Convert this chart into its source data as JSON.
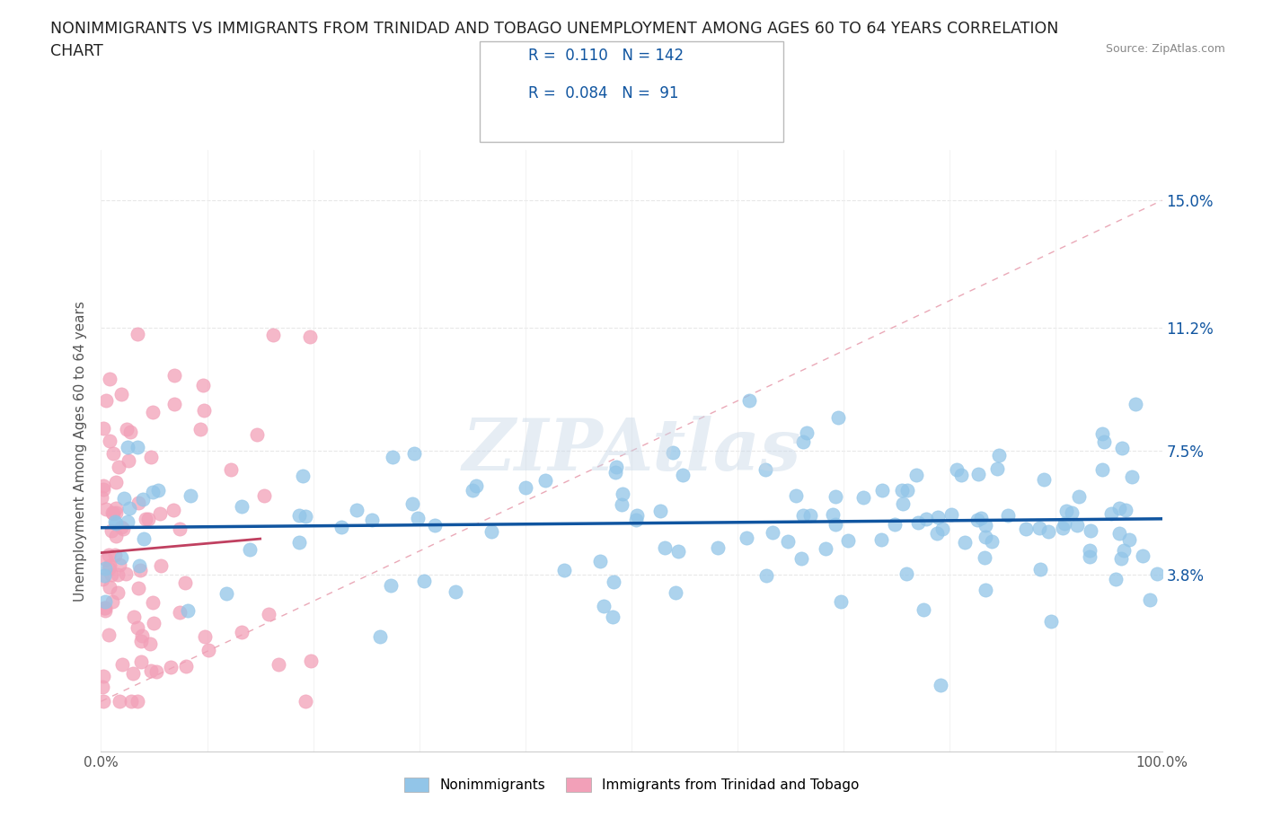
{
  "title_line1": "NONIMMIGRANTS VS IMMIGRANTS FROM TRINIDAD AND TOBAGO UNEMPLOYMENT AMONG AGES 60 TO 64 YEARS CORRELATION",
  "title_line2": "CHART",
  "source": "Source: ZipAtlas.com",
  "ylabel": "Unemployment Among Ages 60 to 64 years",
  "xlim": [
    0,
    100
  ],
  "ylim": [
    -1.5,
    16.5
  ],
  "xticks": [
    0,
    10,
    20,
    30,
    40,
    50,
    60,
    70,
    80,
    90,
    100
  ],
  "xticklabels": [
    "0.0%",
    "",
    "",
    "",
    "",
    "",
    "",
    "",
    "",
    "",
    "100.0%"
  ],
  "ytick_positions": [
    3.8,
    7.5,
    11.2,
    15.0
  ],
  "ytick_labels": [
    "3.8%",
    "7.5%",
    "11.2%",
    "15.0%"
  ],
  "nonimmigrant_color": "#92c5e8",
  "immigrant_color": "#f2a0b8",
  "trend_line_color": "#1055a0",
  "immigrant_trend_color": "#c04060",
  "diagonal_line_color": "#e8a0b0",
  "R_nonimmigrant": 0.11,
  "N_nonimmigrant": 142,
  "R_immigrant": 0.084,
  "N_immigrant": 91,
  "legend_labels": [
    "Nonimmigrants",
    "Immigrants from Trinidad and Tobago"
  ],
  "watermark": "ZIPAtlas",
  "background_color": "#ffffff",
  "grid_color": "#e8e8e8",
  "grid_style": "--"
}
